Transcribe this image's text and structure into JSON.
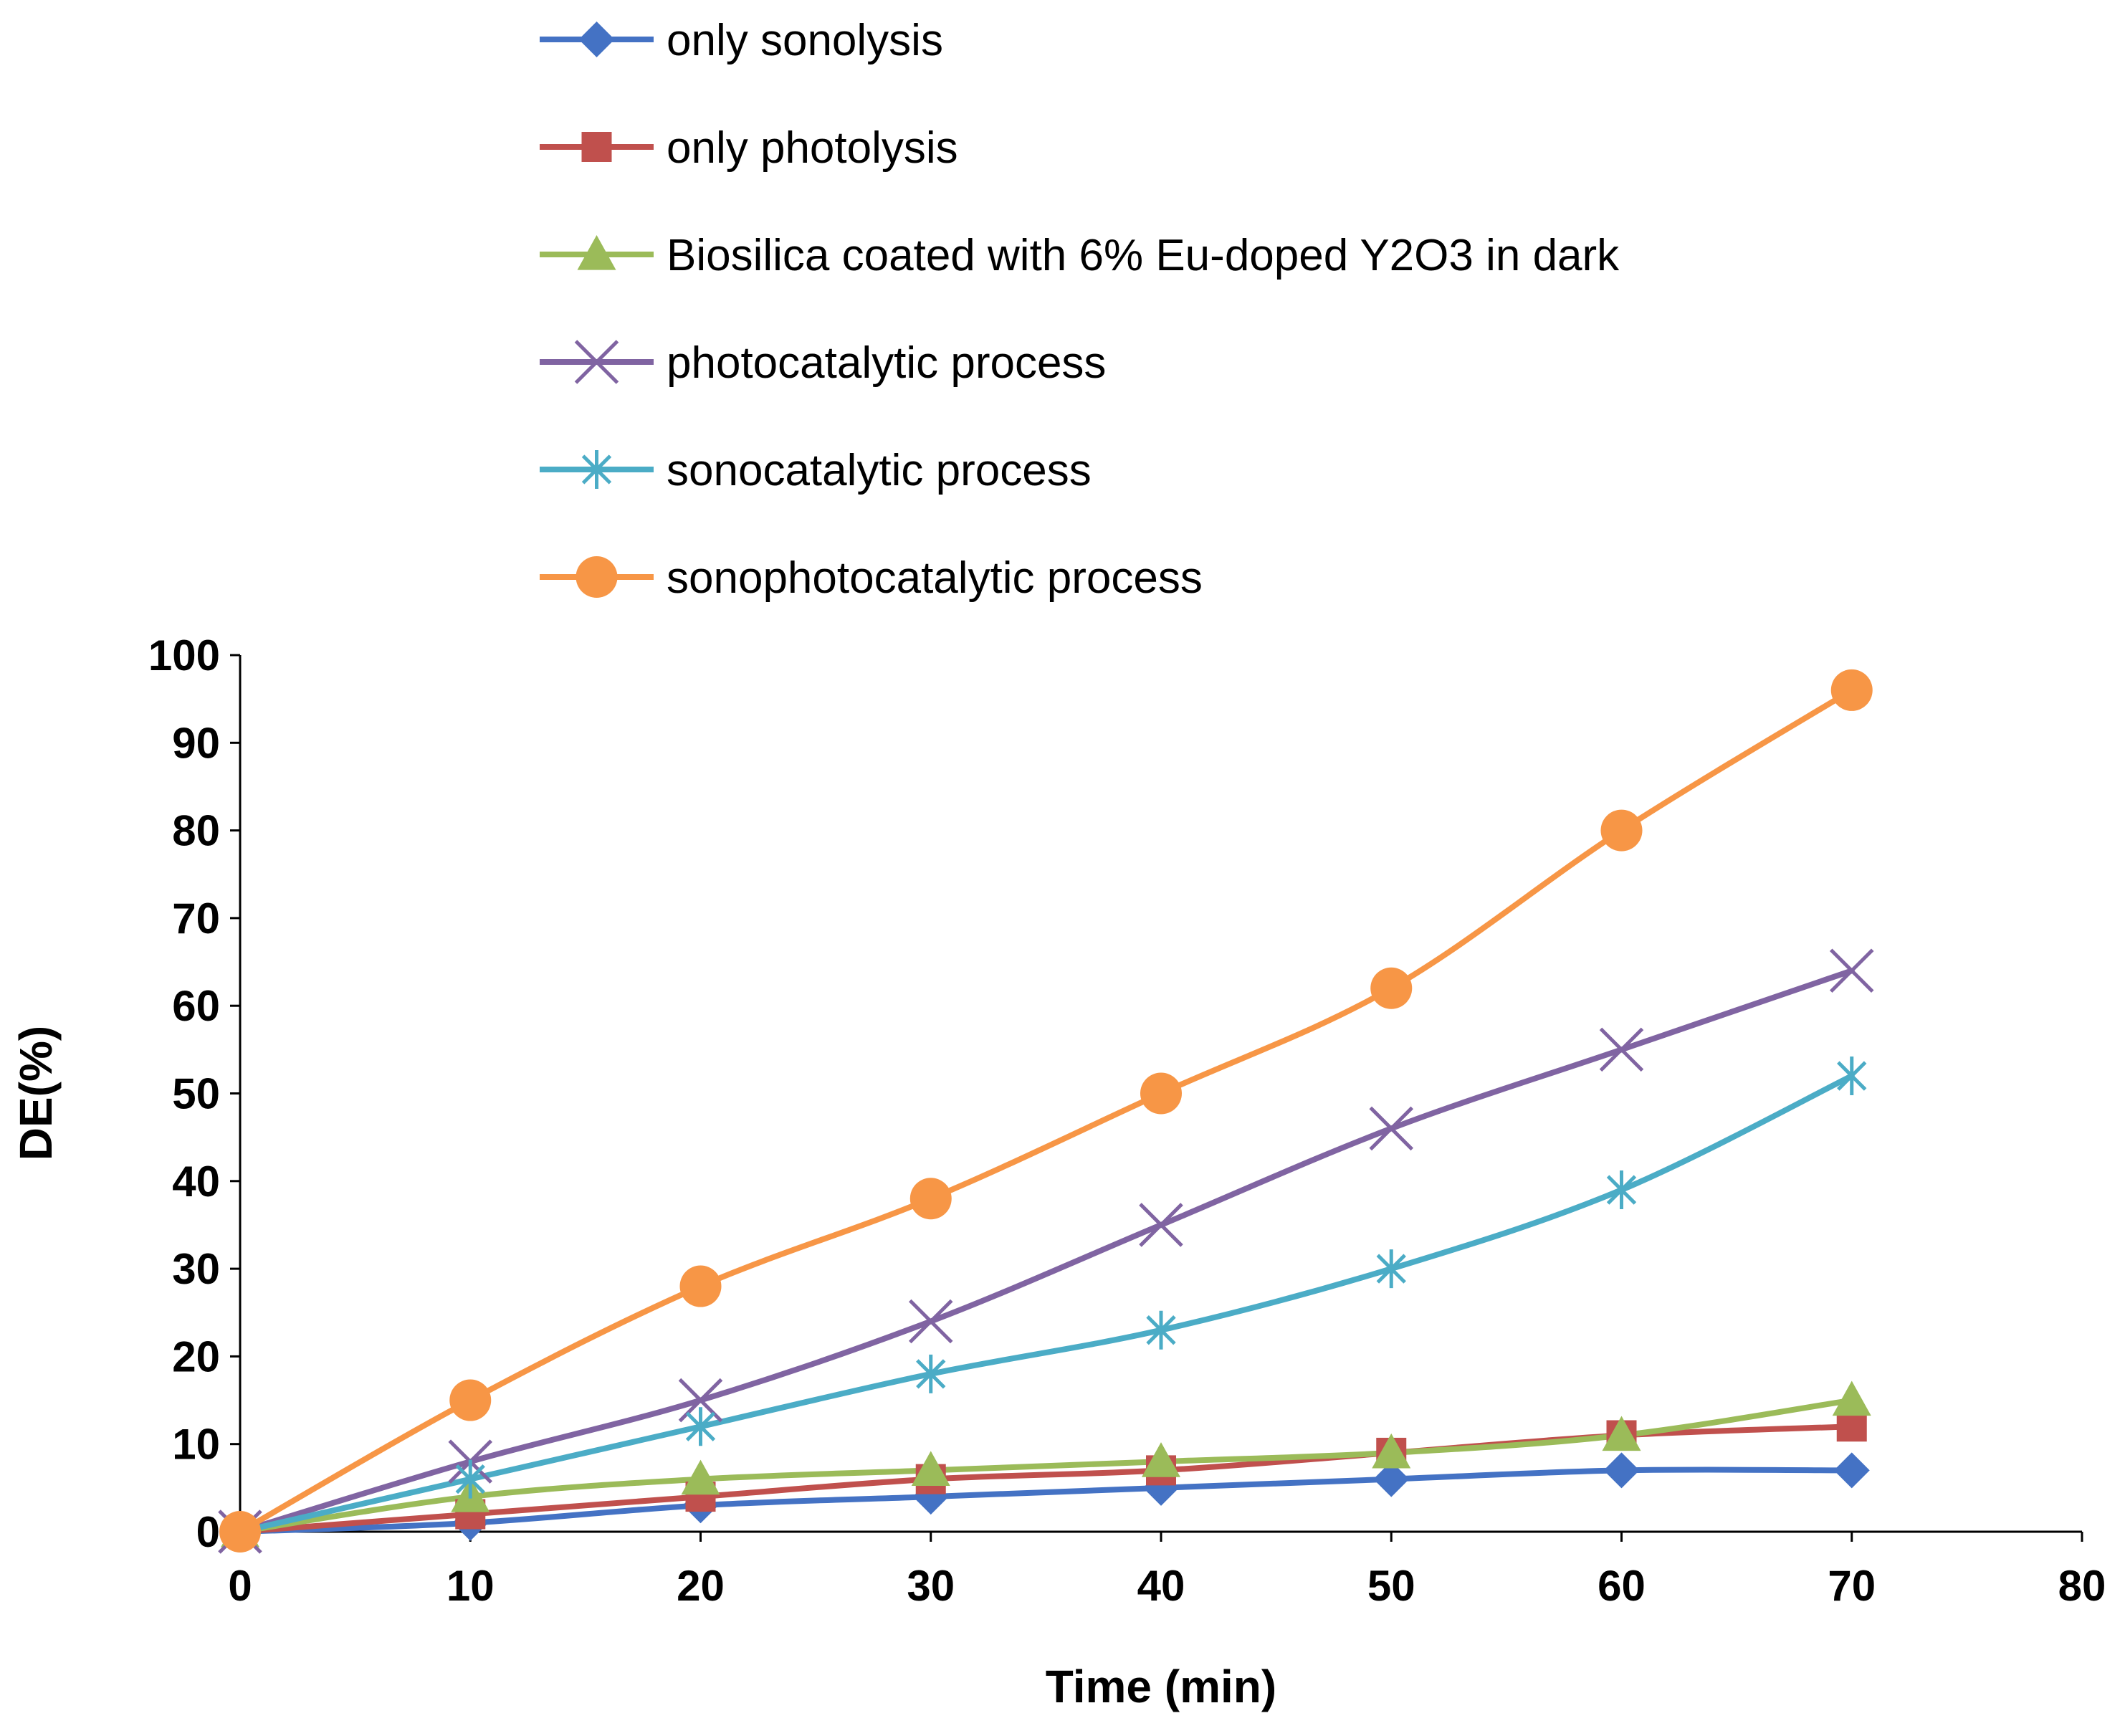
{
  "chart_data": {
    "type": "line",
    "title": "",
    "xlabel": "Time (min)",
    "ylabel": "DE(%)",
    "xlim": [
      0,
      80
    ],
    "ylim": [
      0,
      100
    ],
    "xticks": [
      0,
      10,
      20,
      30,
      40,
      50,
      60,
      70,
      80
    ],
    "yticks": [
      0,
      10,
      20,
      30,
      40,
      50,
      60,
      70,
      80,
      90,
      100
    ],
    "grid": false,
    "legend_position": "top",
    "x": [
      0,
      10,
      20,
      30,
      40,
      50,
      60,
      70
    ],
    "series": [
      {
        "name": "only sonolysis",
        "color": "#4472C4",
        "marker": "diamond",
        "values": [
          0,
          1,
          3,
          4,
          5,
          6,
          7,
          7
        ]
      },
      {
        "name": "only photolysis",
        "color": "#C0504D",
        "marker": "square",
        "values": [
          0,
          2,
          4,
          6,
          7,
          9,
          11,
          12
        ]
      },
      {
        "name": "Biosilica coated with 6% Eu-doped Y2O3 in dark",
        "color": "#9BBB59",
        "marker": "triangle",
        "values": [
          0,
          4,
          6,
          7,
          8,
          9,
          11,
          15
        ]
      },
      {
        "name": "photocatalytic process",
        "color": "#8064A2",
        "marker": "x",
        "values": [
          0,
          8,
          15,
          24,
          35,
          46,
          55,
          64
        ]
      },
      {
        "name": "sonocatalytic process",
        "color": "#4BACC6",
        "marker": "star",
        "values": [
          0,
          6,
          12,
          18,
          23,
          30,
          39,
          52
        ]
      },
      {
        "name": "sonophotocatalytic process",
        "color": "#F79646",
        "marker": "circle",
        "values": [
          0,
          15,
          28,
          38,
          50,
          62,
          80,
          96
        ]
      }
    ]
  }
}
